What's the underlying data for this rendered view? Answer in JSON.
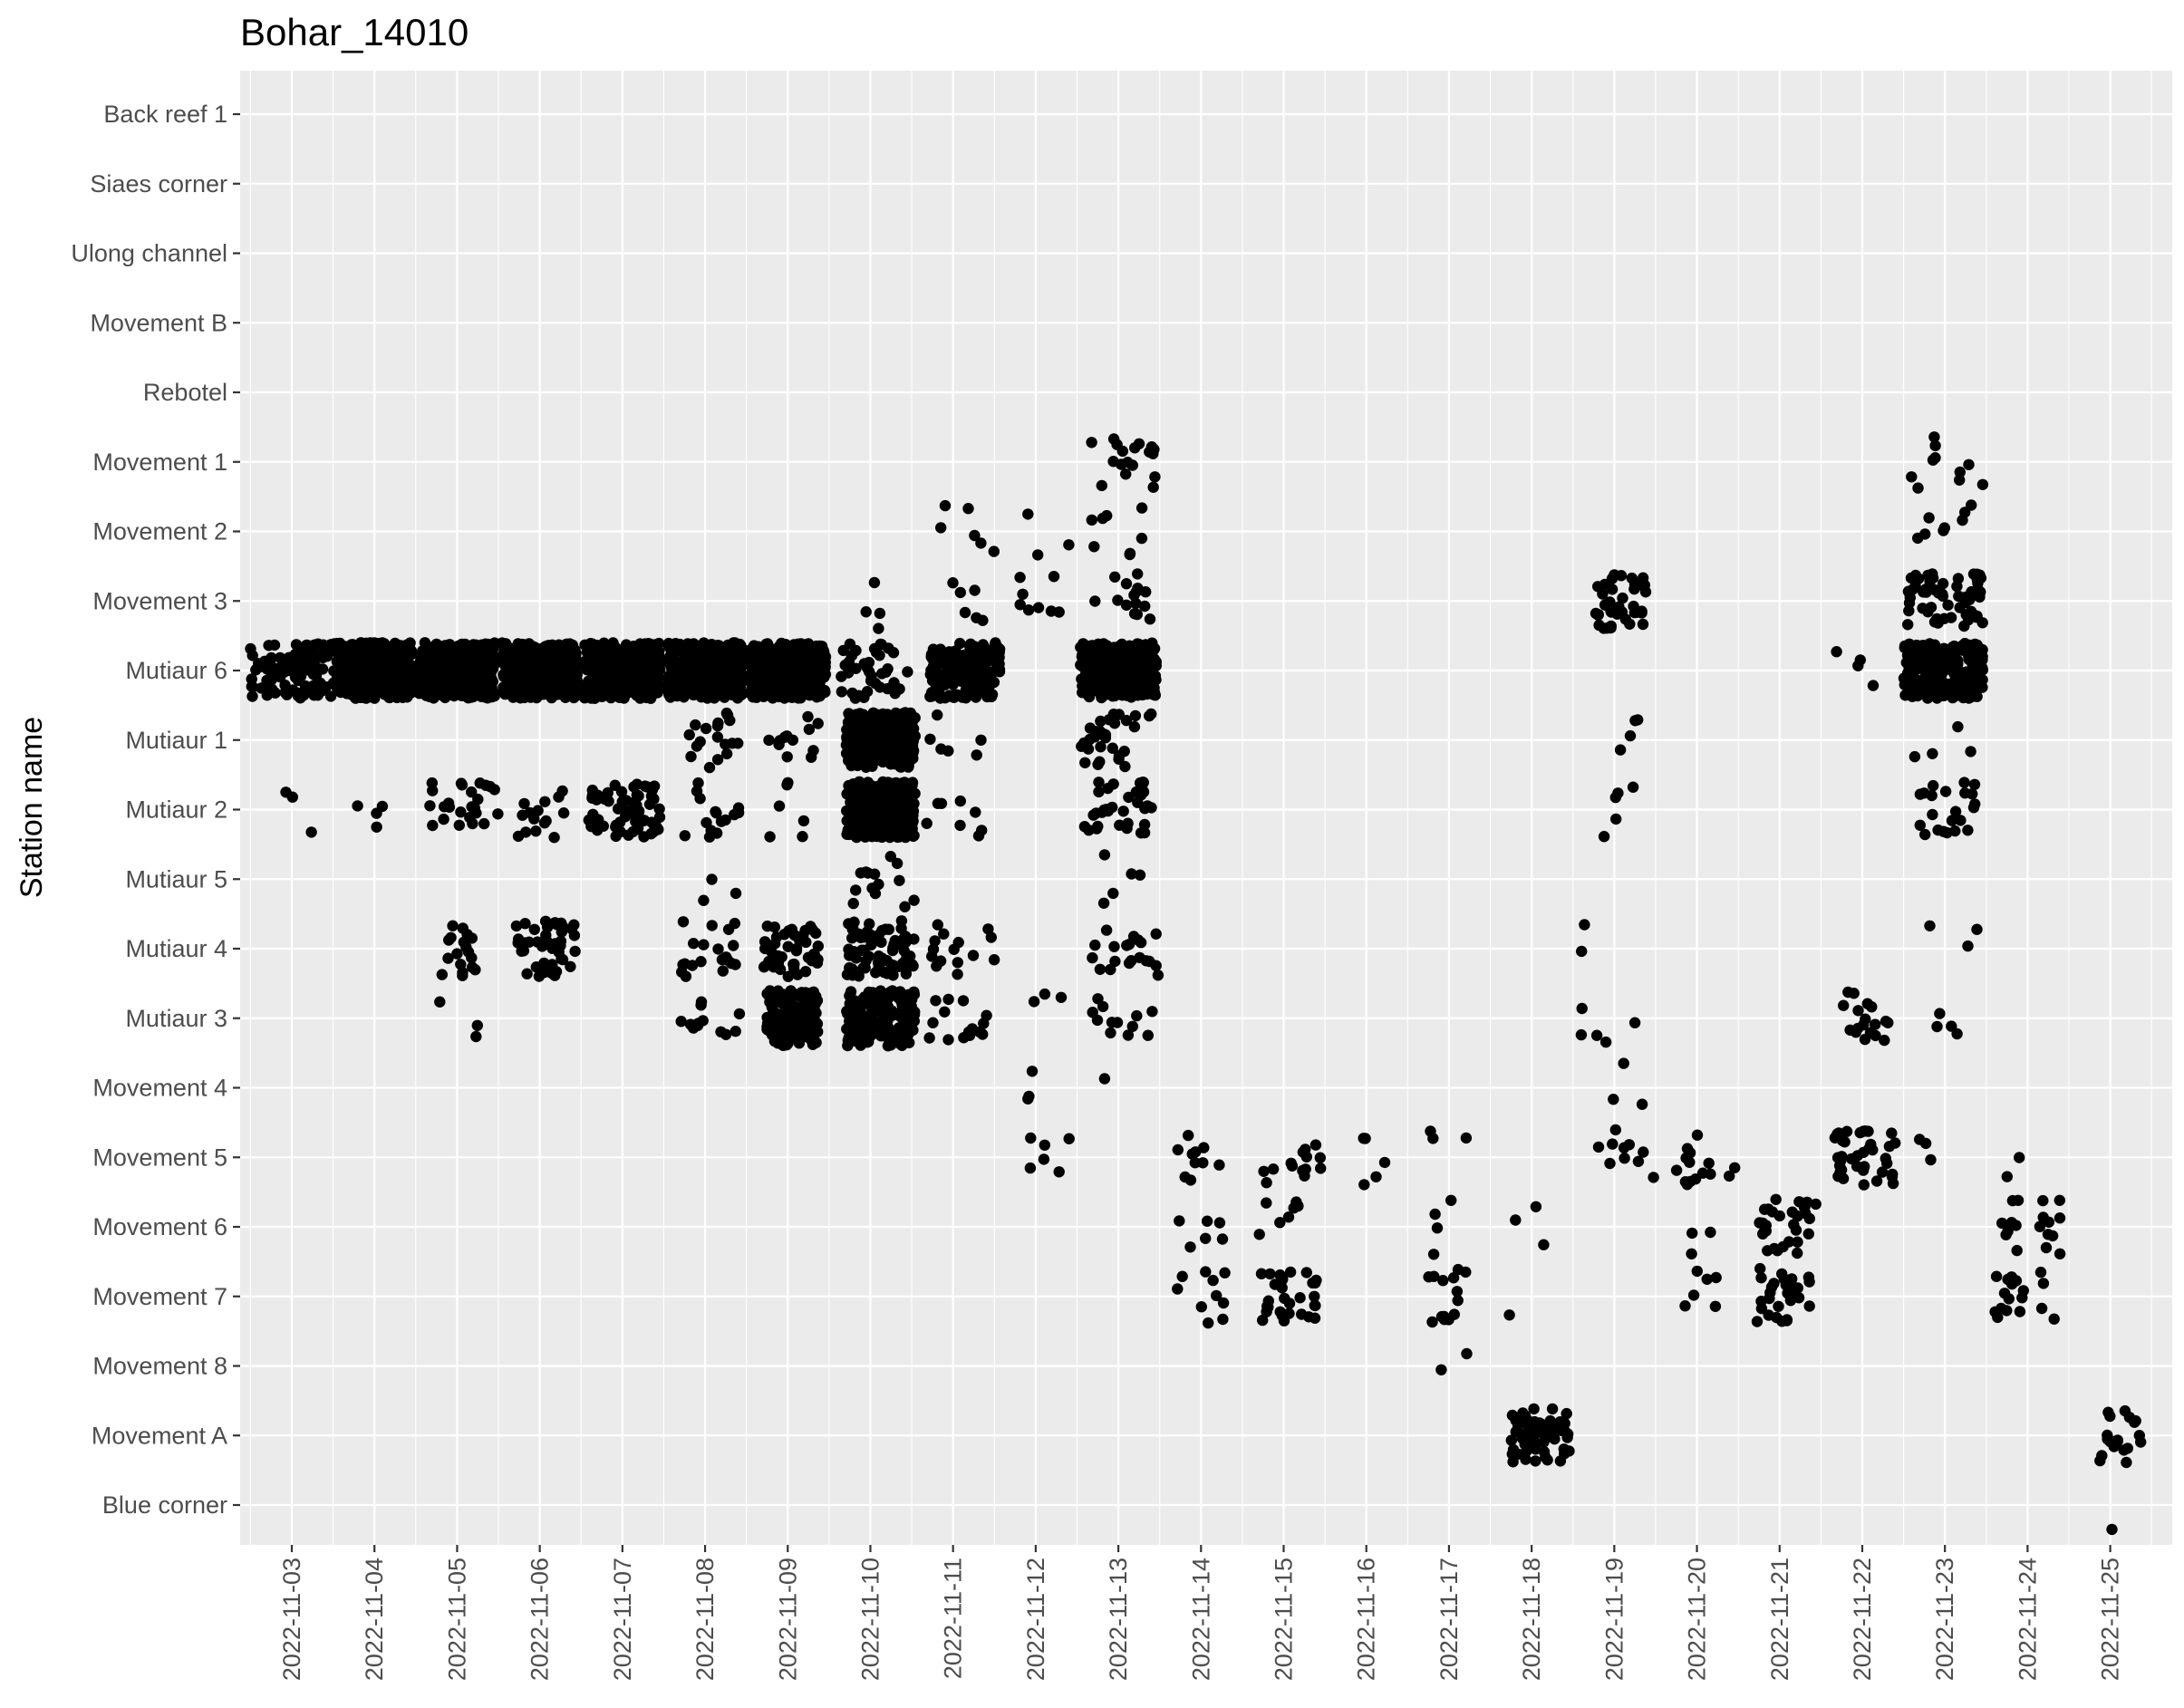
{
  "chart_data": {
    "type": "scatter",
    "title": "Bohar_14010",
    "xlabel": "",
    "ylabel": "Station name",
    "x_scale": "date",
    "xlim": [
      "2022-11-02 09:00",
      "2022-11-25 18:00"
    ],
    "x_ticks": [
      "2022-11-03",
      "2022-11-04",
      "2022-11-05",
      "2022-11-06",
      "2022-11-07",
      "2022-11-08",
      "2022-11-09",
      "2022-11-10",
      "2022-11-11",
      "2022-11-12",
      "2022-11-13",
      "2022-11-14",
      "2022-11-15",
      "2022-11-16",
      "2022-11-17",
      "2022-11-18",
      "2022-11-19",
      "2022-11-20",
      "2022-11-21",
      "2022-11-22",
      "2022-11-23",
      "2022-11-24",
      "2022-11-25"
    ],
    "categories_top_to_bottom": [
      "Back reef 1",
      "Siaes corner",
      "Ulong channel",
      "Movement B",
      "Rebotel",
      "Movement 1",
      "Movement 2",
      "Movement 3",
      "Mutiaur 6",
      "Mutiaur 1",
      "Mutiaur 2",
      "Mutiaur 5",
      "Mutiaur 4",
      "Mutiaur 3",
      "Movement 4",
      "Movement 5",
      "Movement 6",
      "Movement 7",
      "Movement 8",
      "Movement A",
      "Blue corner"
    ],
    "jitter": "points are vertically jittered within each station band",
    "grid": true,
    "background": "#ebebeb",
    "point_color": "#000000",
    "detection_clusters": [
      {
        "station": "Mutiaur 6",
        "start": "2022-11-02 12:00",
        "end": "2022-11-03 16:00",
        "count": 120
      },
      {
        "station": "Mutiaur 6",
        "start": "2022-11-03 13:00",
        "end": "2022-11-04 11:00",
        "count": 400
      },
      {
        "station": "Mutiaur 6",
        "start": "2022-11-04 13:00",
        "end": "2022-11-05 11:00",
        "count": 400
      },
      {
        "station": "Mutiaur 6",
        "start": "2022-11-05 13:00",
        "end": "2022-11-06 11:00",
        "count": 400
      },
      {
        "station": "Mutiaur 6",
        "start": "2022-11-06 13:00",
        "end": "2022-11-07 11:00",
        "count": 400
      },
      {
        "station": "Mutiaur 6",
        "start": "2022-11-07 13:00",
        "end": "2022-11-08 11:00",
        "count": 400
      },
      {
        "station": "Mutiaur 6",
        "start": "2022-11-08 13:00",
        "end": "2022-11-09 11:00",
        "count": 400
      },
      {
        "station": "Mutiaur 6",
        "start": "2022-11-09 14:00",
        "end": "2022-11-10 11:00",
        "count": 40
      },
      {
        "station": "Mutiaur 6",
        "start": "2022-11-10 17:00",
        "end": "2022-11-11 14:00",
        "count": 170
      },
      {
        "station": "Mutiaur 6",
        "start": "2022-11-12 13:00",
        "end": "2022-11-13 11:00",
        "count": 280
      },
      {
        "station": "Mutiaur 6",
        "start": "2022-11-22 12:00",
        "end": "2022-11-23 11:00",
        "count": 300
      },
      {
        "station": "Mutiaur 6",
        "start": "2022-11-21 16:00",
        "end": "2022-11-22 04:00",
        "count": 4
      },
      {
        "station": "Mutiaur 1",
        "start": "2022-11-09 17:00",
        "end": "2022-11-10 13:00",
        "count": 320
      },
      {
        "station": "Mutiaur 1",
        "start": "2022-11-07 18:00",
        "end": "2022-11-08 10:00",
        "count": 18
      },
      {
        "station": "Mutiaur 1",
        "start": "2022-11-08 17:00",
        "end": "2022-11-09 09:00",
        "count": 12
      },
      {
        "station": "Mutiaur 1",
        "start": "2022-11-10 17:00",
        "end": "2022-11-11 12:00",
        "count": 6
      },
      {
        "station": "Mutiaur 1",
        "start": "2022-11-12 13:00",
        "end": "2022-11-13 10:00",
        "count": 30
      },
      {
        "station": "Mutiaur 1",
        "start": "2022-11-22 13:00",
        "end": "2022-11-23 09:00",
        "count": 4
      },
      {
        "station": "Mutiaur 1",
        "start": "2022-11-18 18:00",
        "end": "2022-11-19 07:00",
        "count": 4
      },
      {
        "station": "Mutiaur 2",
        "start": "2022-11-09 17:00",
        "end": "2022-11-10 13:00",
        "count": 300
      },
      {
        "station": "Mutiaur 2",
        "start": "2022-11-06 14:00",
        "end": "2022-11-07 11:00",
        "count": 70
      },
      {
        "station": "Mutiaur 2",
        "start": "2022-11-04 16:00",
        "end": "2022-11-05 12:00",
        "count": 25
      },
      {
        "station": "Mutiaur 2",
        "start": "2022-11-05 15:00",
        "end": "2022-11-06 08:00",
        "count": 15
      },
      {
        "station": "Mutiaur 2",
        "start": "2022-11-07 17:00",
        "end": "2022-11-08 10:00",
        "count": 15
      },
      {
        "station": "Mutiaur 2",
        "start": "2022-11-08 17:00",
        "end": "2022-11-09 06:00",
        "count": 6
      },
      {
        "station": "Mutiaur 2",
        "start": "2022-11-10 16:00",
        "end": "2022-11-11 09:00",
        "count": 8
      },
      {
        "station": "Mutiaur 2",
        "start": "2022-11-12 14:00",
        "end": "2022-11-13 10:00",
        "count": 35
      },
      {
        "station": "Mutiaur 2",
        "start": "2022-11-22 14:00",
        "end": "2022-11-23 09:00",
        "count": 22
      },
      {
        "station": "Mutiaur 2",
        "start": "2022-11-18 19:00",
        "end": "2022-11-19 06:00",
        "count": 5
      },
      {
        "station": "Mutiaur 2",
        "start": "2022-11-02 18:00",
        "end": "2022-11-03 06:00",
        "count": 3
      },
      {
        "station": "Mutiaur 2",
        "start": "2022-11-03 17:00",
        "end": "2022-11-04 08:00",
        "count": 4
      },
      {
        "station": "Mutiaur 5",
        "start": "2022-11-09 17:00",
        "end": "2022-11-10 13:00",
        "count": 14
      },
      {
        "station": "Mutiaur 5",
        "start": "2022-11-07 18:00",
        "end": "2022-11-08 10:00",
        "count": 3
      },
      {
        "station": "Mutiaur 5",
        "start": "2022-11-12 16:00",
        "end": "2022-11-13 09:00",
        "count": 5
      },
      {
        "station": "Mutiaur 4",
        "start": "2022-11-04 17:00",
        "end": "2022-11-05 10:00",
        "count": 18
      },
      {
        "station": "Mutiaur 4",
        "start": "2022-11-05 17:00",
        "end": "2022-11-06 11:00",
        "count": 45
      },
      {
        "station": "Mutiaur 4",
        "start": "2022-11-07 17:00",
        "end": "2022-11-08 10:00",
        "count": 20
      },
      {
        "station": "Mutiaur 4",
        "start": "2022-11-08 17:00",
        "end": "2022-11-09 09:00",
        "count": 45
      },
      {
        "station": "Mutiaur 4",
        "start": "2022-11-09 17:00",
        "end": "2022-11-10 13:00",
        "count": 70
      },
      {
        "station": "Mutiaur 4",
        "start": "2022-11-10 16:00",
        "end": "2022-11-11 12:00",
        "count": 15
      },
      {
        "station": "Mutiaur 4",
        "start": "2022-11-12 16:00",
        "end": "2022-11-13 12:00",
        "count": 20
      },
      {
        "station": "Mutiaur 4",
        "start": "2022-11-22 13:00",
        "end": "2022-11-23 11:00",
        "count": 3
      },
      {
        "station": "Mutiaur 4",
        "start": "2022-11-18 14:00",
        "end": "2022-11-19 06:00",
        "count": 2
      },
      {
        "station": "Mutiaur 3",
        "start": "2022-11-08 18:00",
        "end": "2022-11-09 09:00",
        "count": 150
      },
      {
        "station": "Mutiaur 3",
        "start": "2022-11-09 17:00",
        "end": "2022-11-10 13:00",
        "count": 180
      },
      {
        "station": "Mutiaur 3",
        "start": "2022-11-07 17:00",
        "end": "2022-11-08 10:00",
        "count": 12
      },
      {
        "station": "Mutiaur 3",
        "start": "2022-11-10 17:00",
        "end": "2022-11-11 11:00",
        "count": 15
      },
      {
        "station": "Mutiaur 3",
        "start": "2022-11-04 18:00",
        "end": "2022-11-05 09:00",
        "count": 3
      },
      {
        "station": "Mutiaur 3",
        "start": "2022-11-11 20:00",
        "end": "2022-11-12 10:00",
        "count": 3
      },
      {
        "station": "Mutiaur 3",
        "start": "2022-11-12 16:00",
        "end": "2022-11-13 11:00",
        "count": 12
      },
      {
        "station": "Mutiaur 3",
        "start": "2022-11-21 16:00",
        "end": "2022-11-22 08:00",
        "count": 18
      },
      {
        "station": "Mutiaur 3",
        "start": "2022-11-18 14:00",
        "end": "2022-11-19 07:00",
        "count": 5
      },
      {
        "station": "Mutiaur 3",
        "start": "2022-11-22 16:00",
        "end": "2022-11-23 06:00",
        "count": 4
      },
      {
        "station": "Movement 3",
        "start": "2022-11-09 20:00",
        "end": "2022-11-11 12:00",
        "count": 10
      },
      {
        "station": "Movement 3",
        "start": "2022-11-11 19:00",
        "end": "2022-11-12 09:00",
        "count": 8
      },
      {
        "station": "Movement 3",
        "start": "2022-11-12 16:00",
        "end": "2022-11-13 11:00",
        "count": 15
      },
      {
        "station": "Movement 3",
        "start": "2022-11-18 18:00",
        "end": "2022-11-19 10:00",
        "count": 40
      },
      {
        "station": "Movement 3",
        "start": "2022-11-22 13:00",
        "end": "2022-11-23 11:00",
        "count": 60
      },
      {
        "station": "Movement 2",
        "start": "2022-11-10 18:00",
        "end": "2022-11-11 12:00",
        "count": 6
      },
      {
        "station": "Movement 2",
        "start": "2022-11-11 21:00",
        "end": "2022-11-12 10:00",
        "count": 3
      },
      {
        "station": "Movement 2",
        "start": "2022-11-12 16:00",
        "end": "2022-11-13 11:00",
        "count": 8
      },
      {
        "station": "Movement 2",
        "start": "2022-11-22 14:00",
        "end": "2022-11-23 10:00",
        "count": 8
      },
      {
        "station": "Movement 1",
        "start": "2022-11-12 16:00",
        "end": "2022-11-13 11:00",
        "count": 18
      },
      {
        "station": "Movement 1",
        "start": "2022-11-22 14:00",
        "end": "2022-11-23 11:00",
        "count": 10
      },
      {
        "station": "Movement 4",
        "start": "2022-11-11 21:00",
        "end": "2022-11-12 09:00",
        "count": 3
      },
      {
        "station": "Movement 4",
        "start": "2022-11-12 18:00",
        "end": "2022-11-13 05:00",
        "count": 1
      },
      {
        "station": "Movement 4",
        "start": "2022-11-18 17:00",
        "end": "2022-11-19 12:00",
        "count": 3
      },
      {
        "station": "Movement 5",
        "start": "2022-11-11 18:00",
        "end": "2022-11-12 11:00",
        "count": 6
      },
      {
        "station": "Movement 5",
        "start": "2022-11-13 16:00",
        "end": "2022-11-14 08:00",
        "count": 10
      },
      {
        "station": "Movement 5",
        "start": "2022-11-14 17:00",
        "end": "2022-11-15 12:00",
        "count": 14
      },
      {
        "station": "Movement 5",
        "start": "2022-11-15 18:00",
        "end": "2022-11-16 08:00",
        "count": 5
      },
      {
        "station": "Movement 5",
        "start": "2022-11-16 16:00",
        "end": "2022-11-17 08:00",
        "count": 3
      },
      {
        "station": "Movement 5",
        "start": "2022-11-18 18:00",
        "end": "2022-11-19 12:00",
        "count": 10
      },
      {
        "station": "Movement 5",
        "start": "2022-11-19 17:00",
        "end": "2022-11-20 11:00",
        "count": 15
      },
      {
        "station": "Movement 5",
        "start": "2022-11-21 16:00",
        "end": "2022-11-22 10:00",
        "count": 40
      },
      {
        "station": "Movement 5",
        "start": "2022-11-22 16:00",
        "end": "2022-11-23 03:00",
        "count": 3
      },
      {
        "station": "Movement 5",
        "start": "2022-11-23 15:00",
        "end": "2022-11-24 04:00",
        "count": 2
      },
      {
        "station": "Movement 6",
        "start": "2022-11-13 16:00",
        "end": "2022-11-14 07:00",
        "count": 6
      },
      {
        "station": "Movement 6",
        "start": "2022-11-14 16:00",
        "end": "2022-11-15 09:00",
        "count": 8
      },
      {
        "station": "Movement 6",
        "start": "2022-11-16 17:00",
        "end": "2022-11-17 04:00",
        "count": 4
      },
      {
        "station": "Movement 6",
        "start": "2022-11-17 18:00",
        "end": "2022-11-18 10:00",
        "count": 3
      },
      {
        "station": "Movement 6",
        "start": "2022-11-19 17:00",
        "end": "2022-11-20 08:00",
        "count": 3
      },
      {
        "station": "Movement 6",
        "start": "2022-11-20 17:00",
        "end": "2022-11-21 11:00",
        "count": 30
      },
      {
        "station": "Movement 6",
        "start": "2022-11-23 16:00",
        "end": "2022-11-24 10:00",
        "count": 18
      },
      {
        "station": "Movement 7",
        "start": "2022-11-13 17:00",
        "end": "2022-11-14 07:00",
        "count": 10
      },
      {
        "station": "Movement 7",
        "start": "2022-11-14 17:00",
        "end": "2022-11-15 10:00",
        "count": 30
      },
      {
        "station": "Movement 7",
        "start": "2022-11-16 18:00",
        "end": "2022-11-17 10:00",
        "count": 14
      },
      {
        "station": "Movement 7",
        "start": "2022-11-17 17:00",
        "end": "2022-11-18 03:00",
        "count": 1
      },
      {
        "station": "Movement 7",
        "start": "2022-11-19 18:00",
        "end": "2022-11-20 06:00",
        "count": 6
      },
      {
        "station": "Movement 7",
        "start": "2022-11-20 17:00",
        "end": "2022-11-21 11:00",
        "count": 30
      },
      {
        "station": "Movement 7",
        "start": "2022-11-23 14:00",
        "end": "2022-11-24 10:00",
        "count": 18
      },
      {
        "station": "Movement 8",
        "start": "2022-11-16 19:00",
        "end": "2022-11-17 06:00",
        "count": 2
      },
      {
        "station": "Movement A",
        "start": "2022-11-17 18:00",
        "end": "2022-11-18 11:00",
        "count": 60
      },
      {
        "station": "Movement A",
        "start": "2022-11-24 19:00",
        "end": "2022-11-25 09:00",
        "count": 20
      },
      {
        "station": "Blue corner",
        "start": "2022-11-24 23:00",
        "end": "2022-11-25 01:00",
        "count": 1
      }
    ]
  }
}
